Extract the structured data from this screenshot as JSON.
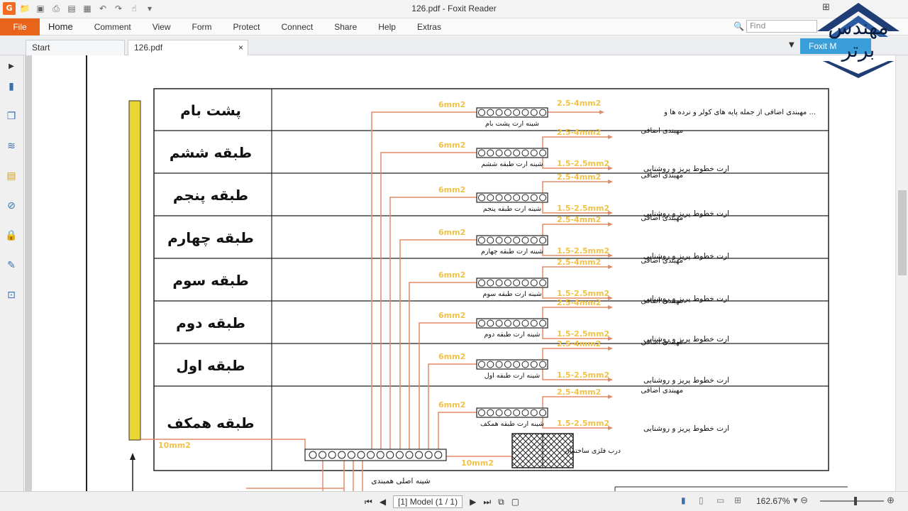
{
  "window": {
    "title": "126.pdf - Foxit Reader"
  },
  "menu": {
    "file": "File",
    "tabs": [
      "Home",
      "Comment",
      "View",
      "Form",
      "Protect",
      "Connect",
      "Share",
      "Help",
      "Extras"
    ]
  },
  "search": {
    "placeholder": "Find"
  },
  "doc_tabs": {
    "start": "Start",
    "file": "126.pdf",
    "close": "×"
  },
  "foxit_button": "Foxit M",
  "status": {
    "page_box": "[1] Model (1 / 1)",
    "zoom": "162.67%"
  },
  "watermark": {
    "line1": "مهندس",
    "line2": "برتر"
  },
  "drawing": {
    "floors": [
      "پشت بام",
      "طبقه ششم",
      "طبقه پنجم",
      "طبقه چهارم",
      "طبقه سوم",
      "طبقه دوم",
      "طبقه اول",
      "طبقه همکف"
    ],
    "busbars": [
      "شینه ارت پشت بام",
      "شینه ارت طبقه ششم",
      "شینه ارت طبقه پنجم",
      "شینه ارت طبقه چهارم",
      "شینه ارت طبقه سوم",
      "شینه ارت طبقه دوم",
      "شینه ارت طبقه اول",
      "شینه ارت طبقه همکف"
    ],
    "size_6": "6mm2",
    "size_25_4": "2.5-4mm2",
    "size_15_25": "1.5-2.5mm2",
    "size_10": "10mm2",
    "roof_note": "مهبندی اضافی از جمله پایه های کولر و نرده ها و ...",
    "extra_bonding": "مهبندی اضافی",
    "socket_light_earth": "ارت خطوط پریز و روشنایی",
    "main_bus": "شینه اصلی همبندی",
    "metal_door": "درب فلزی ساختمان"
  }
}
